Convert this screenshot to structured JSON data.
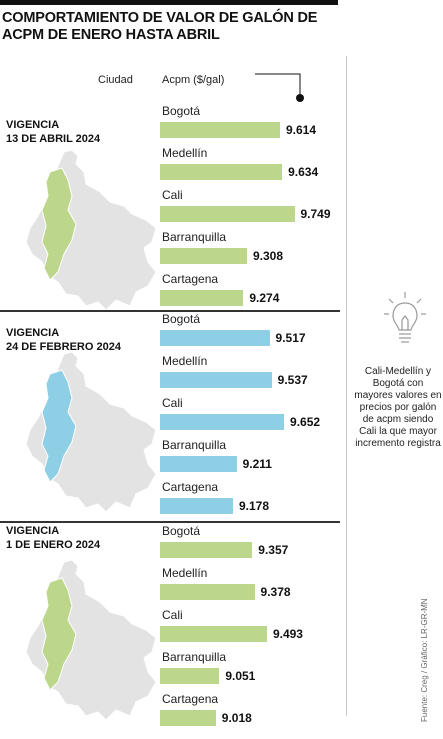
{
  "title": "COMPORTAMIENTO DE VALOR DE GALÓN DE ACPM DE ENERO HASTA ABRIL",
  "headers": {
    "city": "Ciudad",
    "value": "Acpm ($/gal)"
  },
  "colors": {
    "green": "#bcd68b",
    "blue": "#8ecfe6",
    "map_gray": "#e3e3e3",
    "map_border": "#ffffff"
  },
  "chart_data": {
    "type": "bar",
    "orientation": "horizontal",
    "xlim": [
      8500,
      9800
    ],
    "panels": [
      {
        "label_line1": "VIGENCIA",
        "label_line2": "13 DE ABRIL 2024",
        "color": "#bcd68b",
        "categories": [
          "Bogotá",
          "Medellín",
          "Cali",
          "Barranquilla",
          "Cartagena"
        ],
        "values": [
          9614,
          9634,
          9749,
          9308,
          9274
        ],
        "value_labels": [
          "9.614",
          "9.634",
          "9.749",
          "9.308",
          "9.274"
        ]
      },
      {
        "label_line1": "VIGENCIA",
        "label_line2": "24 DE FEBRERO 2024",
        "color": "#8ecfe6",
        "categories": [
          "Bogotá",
          "Medellín",
          "Cali",
          "Barranquilla",
          "Cartagena"
        ],
        "values": [
          9517,
          9537,
          9652,
          9211,
          9178
        ],
        "value_labels": [
          "9.517",
          "9.537",
          "9.652",
          "9.211",
          "9.178"
        ]
      },
      {
        "label_line1": "VIGENCIA",
        "label_line2": "1 DE ENERO 2024",
        "color": "#bcd68b",
        "categories": [
          "Bogotá",
          "Medellín",
          "Cali",
          "Barranquilla",
          "Cartagena"
        ],
        "values": [
          9357,
          9378,
          9493,
          9051,
          9018
        ],
        "value_labels": [
          "9.357",
          "9.378",
          "9.493",
          "9.051",
          "9.018"
        ]
      }
    ]
  },
  "note": "Cali-Medellín y Bogotá con mayores valores en precios por galón de acpm siendo Cali la que mayor incremento registra",
  "source": "Fuente: Creg / Gráfico: LR-GR-MN",
  "icons": {
    "note_icon": "lightbulb-icon"
  }
}
